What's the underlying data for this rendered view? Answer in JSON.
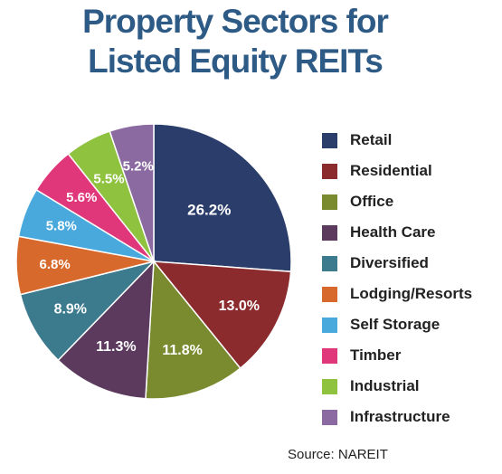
{
  "chart_data": {
    "type": "pie",
    "title_lines": [
      "Property Sectors for",
      "Listed Equity REITs"
    ],
    "categories": [
      "Retail",
      "Residential",
      "Office",
      "Health Care",
      "Diversified",
      "Lodging/Resorts",
      "Self Storage",
      "Timber",
      "Industrial",
      "Infrastructure"
    ],
    "values": [
      26.2,
      13.0,
      11.8,
      11.3,
      8.9,
      6.8,
      5.8,
      5.6,
      5.5,
      5.2
    ],
    "labels": [
      "26.2%",
      "13.0%",
      "11.8%",
      "11.3%",
      "8.9%",
      "6.8%",
      "5.8%",
      "5.6%",
      "5.5%",
      "5.2%"
    ],
    "colors": [
      "#2b3e6b",
      "#8c2b2e",
      "#7a8a2e",
      "#5b3a5e",
      "#3c7a8e",
      "#d8692c",
      "#49a9dd",
      "#e0367a",
      "#8ec23f",
      "#8a6aa0"
    ],
    "legend_position": "right"
  },
  "source": "Source: NAREIT"
}
